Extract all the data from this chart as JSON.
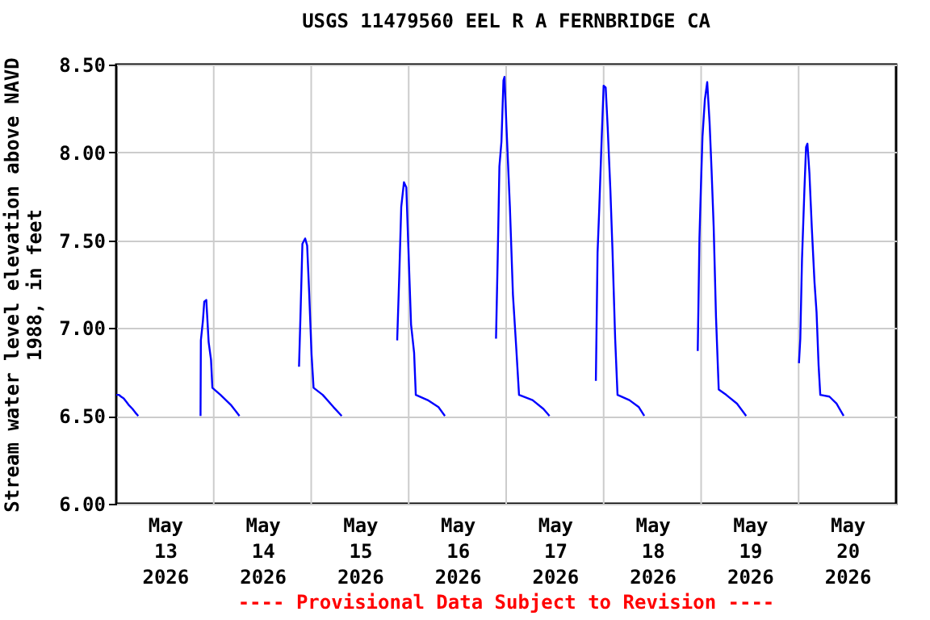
{
  "chart_data": {
    "type": "line",
    "title": "USGS 11479560 EEL R A FERNBRIDGE CA",
    "ylabel": "Stream water level elevation above NAVD 1988, in feet",
    "annotations": [
      "---- Provisional Data Subject to Revision ----"
    ],
    "series": [
      {
        "color": "#0000ff",
        "x": [
          "2026-05-13T00:00",
          "2026-05-13T00:40",
          "2026-05-13T01:10",
          "2026-05-13T01:50",
          "2026-05-13T02:30",
          "2026-05-13T03:10",
          "2026-05-13T04:00",
          "2026-05-13T04:40",
          "2026-05-13T05:25",
          "2026-05-13T12:00",
          "2026-05-13T20:45",
          "2026-05-13T20:50",
          "2026-05-13T21:20",
          "2026-05-13T21:40",
          "2026-05-13T22:10",
          "2026-05-13T22:45",
          "2026-05-13T23:20",
          "2026-05-13T23:40",
          "2026-05-14T01:40",
          "2026-05-14T04:20",
          "2026-05-14T06:20",
          "2026-05-14T12:00",
          "2026-05-14T21:00",
          "2026-05-14T21:25",
          "2026-05-14T21:50",
          "2026-05-14T22:30",
          "2026-05-14T23:00",
          "2026-05-14T23:30",
          "2026-05-15T00:05",
          "2026-05-15T00:35",
          "2026-05-15T02:50",
          "2026-05-15T05:30",
          "2026-05-15T07:30",
          "2026-05-15T12:00",
          "2026-05-15T21:10",
          "2026-05-15T21:40",
          "2026-05-15T22:10",
          "2026-05-15T22:50",
          "2026-05-15T23:25",
          "2026-05-15T23:55",
          "2026-05-16T00:35",
          "2026-05-16T01:20",
          "2026-05-16T01:45",
          "2026-05-16T04:40",
          "2026-05-16T07:20",
          "2026-05-16T08:55",
          "2026-05-16T12:00",
          "2026-05-16T21:30",
          "2026-05-16T21:55",
          "2026-05-16T22:20",
          "2026-05-16T22:50",
          "2026-05-16T23:20",
          "2026-05-16T23:35",
          "2026-05-17T00:05",
          "2026-05-17T00:55",
          "2026-05-17T01:40",
          "2026-05-17T02:30",
          "2026-05-17T03:10",
          "2026-05-17T06:30",
          "2026-05-17T09:10",
          "2026-05-17T10:40",
          "2026-05-17T12:00",
          "2026-05-17T22:05",
          "2026-05-17T22:30",
          "2026-05-17T22:55",
          "2026-05-17T23:30",
          "2026-05-18T00:00",
          "2026-05-18T00:30",
          "2026-05-18T01:00",
          "2026-05-18T01:40",
          "2026-05-18T02:10",
          "2026-05-18T02:50",
          "2026-05-18T03:25",
          "2026-05-18T06:20",
          "2026-05-18T08:40",
          "2026-05-18T10:00",
          "2026-05-18T12:00",
          "2026-05-18T23:10",
          "2026-05-18T23:35",
          "2026-05-18T23:55",
          "2026-05-19T00:20",
          "2026-05-19T00:55",
          "2026-05-19T01:30",
          "2026-05-19T02:05",
          "2026-05-19T02:35",
          "2026-05-19T03:05",
          "2026-05-19T03:40",
          "2026-05-19T04:20",
          "2026-05-19T06:10",
          "2026-05-19T08:50",
          "2026-05-19T11:05",
          "2026-05-19T12:00",
          "2026-05-20T00:05",
          "2026-05-20T00:25",
          "2026-05-20T00:50",
          "2026-05-20T01:25",
          "2026-05-20T01:50",
          "2026-05-20T02:10",
          "2026-05-20T02:40",
          "2026-05-20T03:15",
          "2026-05-20T03:55",
          "2026-05-20T04:25",
          "2026-05-20T04:55",
          "2026-05-20T05:20",
          "2026-05-20T07:35",
          "2026-05-20T09:20",
          "2026-05-20T11:05"
        ],
        "values": [
          6.62,
          6.62,
          6.61,
          6.6,
          6.58,
          6.56,
          6.54,
          6.52,
          6.5,
          null,
          6.5,
          6.93,
          7.04,
          7.15,
          7.16,
          6.92,
          6.82,
          6.66,
          6.62,
          6.56,
          6.5,
          null,
          6.78,
          7.12,
          7.48,
          7.51,
          7.47,
          7.2,
          6.85,
          6.66,
          6.62,
          6.55,
          6.5,
          null,
          6.93,
          7.29,
          7.69,
          7.83,
          7.8,
          7.46,
          7.02,
          6.86,
          6.62,
          6.59,
          6.55,
          6.5,
          null,
          6.94,
          7.4,
          7.92,
          8.06,
          8.41,
          8.43,
          8.14,
          7.69,
          7.19,
          6.88,
          6.62,
          6.59,
          6.54,
          6.5,
          null,
          6.7,
          7.43,
          7.68,
          8.07,
          8.38,
          8.37,
          8.14,
          7.78,
          7.45,
          6.94,
          6.62,
          6.59,
          6.55,
          6.5,
          null,
          6.87,
          7.51,
          7.78,
          8.09,
          8.3,
          8.4,
          8.17,
          7.89,
          7.58,
          7.06,
          6.65,
          6.62,
          6.57,
          6.5,
          null,
          6.8,
          6.94,
          7.39,
          7.78,
          8.03,
          8.05,
          7.88,
          7.57,
          7.26,
          7.09,
          6.79,
          6.62,
          6.61,
          6.57,
          6.5
        ]
      }
    ],
    "xlim": [
      "2026-05-13T00:00",
      "2026-05-21T00:00"
    ],
    "xticks": [
      {
        "value": "2026-05-13T12:00",
        "label": "May 13 2026"
      },
      {
        "value": "2026-05-14T12:00",
        "label": "May 14 2026"
      },
      {
        "value": "2026-05-15T12:00",
        "label": "May 15 2026"
      },
      {
        "value": "2026-05-16T12:00",
        "label": "May 16 2026"
      },
      {
        "value": "2026-05-17T12:00",
        "label": "May 17 2026"
      },
      {
        "value": "2026-05-18T12:00",
        "label": "May 18 2026"
      },
      {
        "value": "2026-05-19T12:00",
        "label": "May 19 2026"
      },
      {
        "value": "2026-05-20T12:00",
        "label": "May 20 2026"
      },
      {
        "value": "2026-05-14T00:00",
        "label": null
      },
      {
        "value": "2026-05-15T00:00",
        "label": null
      },
      {
        "value": "2026-05-16T00:00",
        "label": null
      },
      {
        "value": "2026-05-17T00:00",
        "label": null
      },
      {
        "value": "2026-05-18T00:00",
        "label": null
      },
      {
        "value": "2026-05-19T00:00",
        "label": null
      },
      {
        "value": "2026-05-20T00:00",
        "label": null
      }
    ],
    "ylim": [
      6.0,
      8.5
    ],
    "yticks": [
      {
        "value": 6.0,
        "label": "6.00"
      },
      {
        "value": 6.5,
        "label": "6.50"
      },
      {
        "value": 7.0,
        "label": "7.00"
      },
      {
        "value": 7.5,
        "label": "7.50"
      },
      {
        "value": 8.0,
        "label": "8.00"
      },
      {
        "value": 8.5,
        "label": "8.50"
      }
    ],
    "grid": true
  }
}
